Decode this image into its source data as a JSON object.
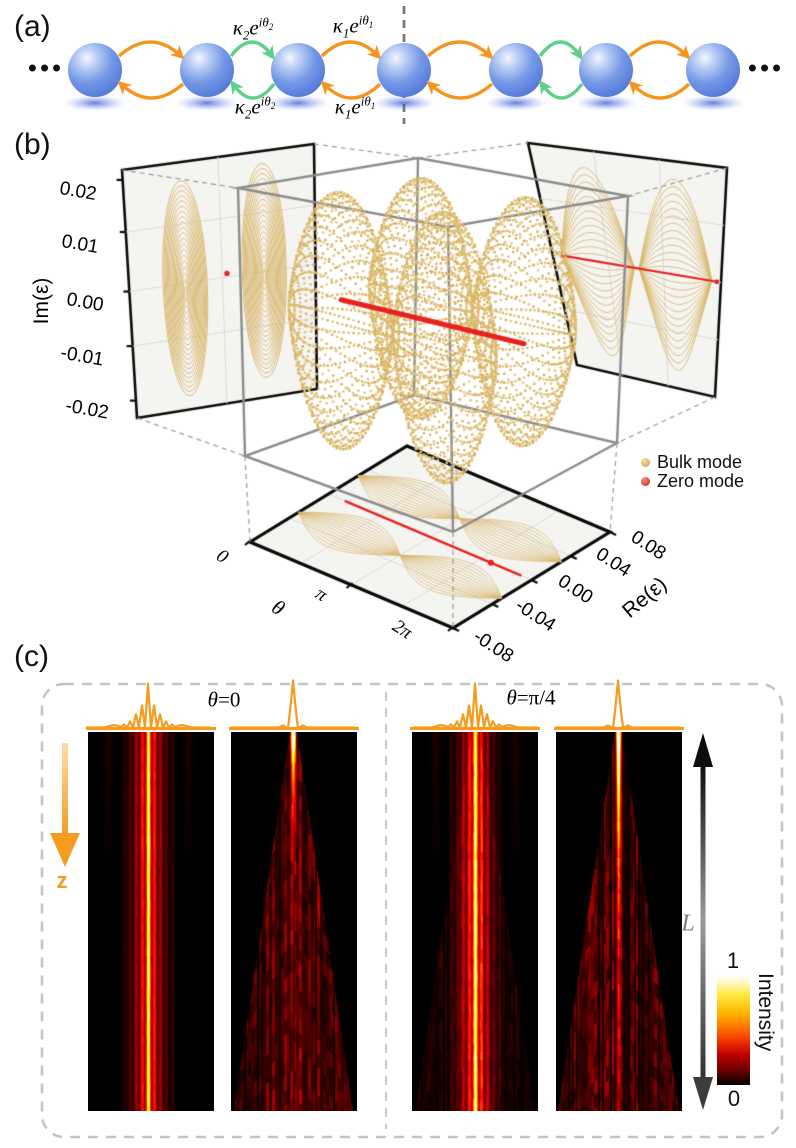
{
  "panel_a": {
    "label": "(a)",
    "ellipsis_left": "•••",
    "ellipsis_right": "•••",
    "sphere_color": "#7498e6",
    "arrow_colors": {
      "kappa1": "#F6951D",
      "kappa2": "#5FD08A"
    },
    "couplings": [
      {
        "kappa": "κ",
        "kappa_sub": "2",
        "e": "e",
        "sup": "iθ",
        "sup_sub": "2",
        "pos": "top-left"
      },
      {
        "kappa": "κ",
        "kappa_sub": "1",
        "e": "e",
        "sup": "iθ",
        "sup_sub": "1",
        "pos": "top-right"
      },
      {
        "kappa": "κ",
        "kappa_sub": "2",
        "e": "e",
        "sup": "iθ",
        "sup_sub": "2",
        "pos": "bottom-left"
      },
      {
        "kappa": "κ",
        "kappa_sub": "1",
        "e": "e",
        "sup": "iθ",
        "sup_sub": "1",
        "pos": "bottom-right"
      }
    ]
  },
  "panel_b": {
    "label": "(b)",
    "axes": {
      "im": {
        "title": "Im(ε)",
        "ticks": [
          "0.02",
          "0.01",
          "0.00",
          "-0.01",
          "-0.02"
        ]
      },
      "theta": {
        "title": "θ",
        "ticks": [
          "0",
          "π",
          "2π"
        ]
      },
      "re": {
        "title": "Re(ε)",
        "ticks": [
          "0.08",
          "0.04",
          "0.00",
          "-0.04",
          "-0.08"
        ]
      }
    },
    "legend": [
      {
        "label": "Bulk mode",
        "color": "#DDB96C"
      },
      {
        "label": "Zero mode",
        "color": "#E8211D"
      }
    ],
    "colors": {
      "gold": "#DCBB70",
      "gold_line": "#D9B66B",
      "red": "#E8211D",
      "cube_gray": "#8C8C8C",
      "panel_fill": "#f4f4f1",
      "grid": "#dcdcdc"
    }
  },
  "panel_c": {
    "label": "(c)",
    "theta_labels": [
      {
        "sym": "θ",
        "rest": "=0"
      },
      {
        "sym": "θ",
        "rest": "=π/4"
      }
    ],
    "z_label": "z",
    "L_label": "L",
    "colorbar": {
      "max": "1",
      "min": "0",
      "title": "Intensity"
    },
    "colors": {
      "orange": "#F59B20",
      "arrow_dark": "#111111"
    }
  },
  "chart_data": [
    {
      "type": "scatter",
      "subtype": "3d-complex-spectrum",
      "title": "Complex energy spectrum vs phase θ",
      "axes": {
        "x": {
          "label": "θ",
          "range_labels": [
            "0",
            "2π"
          ],
          "ticks": [
            "0",
            "π",
            "2π"
          ]
        },
        "y": {
          "label": "Re(ε)",
          "range": [
            -0.08,
            0.08
          ],
          "ticks": [
            0.08,
            0.04,
            0.0,
            -0.04,
            -0.08
          ]
        },
        "z": {
          "label": "Im(ε)",
          "range": [
            -0.02,
            0.02
          ],
          "ticks": [
            0.02,
            0.01,
            0.0,
            -0.01,
            -0.02
          ]
        }
      },
      "series": [
        {
          "name": "Bulk mode",
          "color": "#DCBB70",
          "re_band_centers": [
            -0.04,
            0.04
          ],
          "re_half_width": 0.03,
          "im_half_width": 0.019,
          "envelope": "|sin(θ)| pinching at θ = 0, π, 2π"
        },
        {
          "name": "Zero mode",
          "color": "#E8211D",
          "line": "Re(ε)=0, Im(ε)=0 for all θ"
        }
      ],
      "projections": [
        "Re–Im wall (left)",
        "θ–Im wall (right)",
        "θ–Re floor"
      ],
      "legend_position": "right"
    },
    {
      "type": "heatmap",
      "title": "Propagation intensity vs z",
      "groups": [
        {
          "theta": "θ=0",
          "maps": [
            {
              "input": "zero-mode profile",
              "behavior": "localized stripes"
            },
            {
              "input": "single-site",
              "behavior": "ballistic spreading cone"
            }
          ]
        },
        {
          "theta": "θ=π/4",
          "maps": [
            {
              "input": "zero-mode profile",
              "behavior": "localized stripes with weak spreading"
            },
            {
              "input": "single-site",
              "behavior": "spreading cone with persistent center"
            }
          ]
        }
      ],
      "colorbar": {
        "label": "Intensity",
        "min": 0,
        "max": 1,
        "colormap": "hot"
      },
      "zero_mode_stripes": [
        {
          "offset": 0,
          "amp": 1.0
        },
        {
          "offset": -6,
          "amp": 0.5
        },
        {
          "offset": 6,
          "amp": 0.5
        },
        {
          "offset": -12,
          "amp": 0.3
        },
        {
          "offset": 12,
          "amp": 0.3
        },
        {
          "offset": -18,
          "amp": 0.14
        },
        {
          "offset": 18,
          "amp": 0.14
        },
        {
          "offset": -24,
          "amp": 0.07
        },
        {
          "offset": 24,
          "amp": 0.07
        }
      ]
    }
  ]
}
